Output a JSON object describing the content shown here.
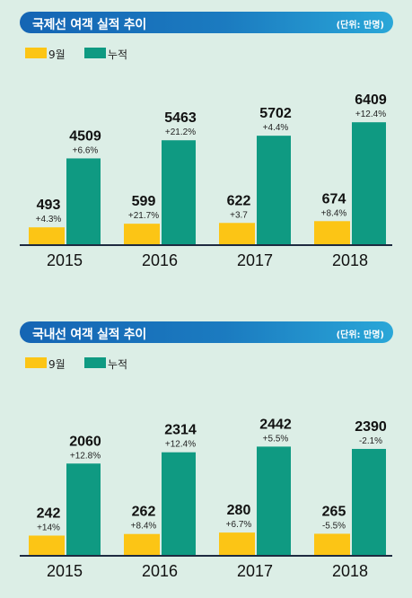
{
  "colors": {
    "monthly": "#fcc515",
    "cumulative": "#0f9a82",
    "axis": "#1e2a40"
  },
  "chart_data": [
    {
      "type": "bar",
      "title": "국제선 여객 실적 추이",
      "unit": "(단위: 만명)",
      "categories": [
        "2015",
        "2016",
        "2017",
        "2018"
      ],
      "ylim": [
        0,
        6700
      ],
      "legend_position": "top-left",
      "series": [
        {
          "name": "9월",
          "values": [
            493,
            599,
            622,
            674
          ],
          "labels": [
            "493",
            "599",
            "622",
            "674"
          ],
          "changes": [
            "+4.3%",
            "+21.7%",
            "+3.7",
            "+8.4%"
          ]
        },
        {
          "name": "누적",
          "values": [
            4509,
            5463,
            5702,
            6409
          ],
          "labels": [
            "4509",
            "5463",
            "5702",
            "6409"
          ],
          "changes": [
            "+6.6%",
            "+21.2%",
            "+4.4%",
            "+12.4%"
          ]
        }
      ]
    },
    {
      "type": "bar",
      "title": "국내선 여객 실적 추이",
      "unit": "(단위: 만명)",
      "categories": [
        "2015",
        "2016",
        "2017",
        "2018"
      ],
      "ylim": [
        0,
        2450
      ],
      "legend_position": "top-left",
      "series": [
        {
          "name": "9월",
          "values": [
            242,
            262,
            280,
            265
          ],
          "labels": [
            "242",
            "262",
            "280",
            "265"
          ],
          "changes": [
            "+14%",
            "+8.4%",
            "+6.7%",
            "-5.5%"
          ]
        },
        {
          "name": "누적",
          "values": [
            2060,
            2314,
            2442,
            2390
          ],
          "labels": [
            "2060",
            "2314",
            "2442",
            "2390"
          ],
          "changes": [
            "+12.8%",
            "+12.4%",
            "+5.5%",
            "-2.1%"
          ]
        }
      ]
    }
  ]
}
